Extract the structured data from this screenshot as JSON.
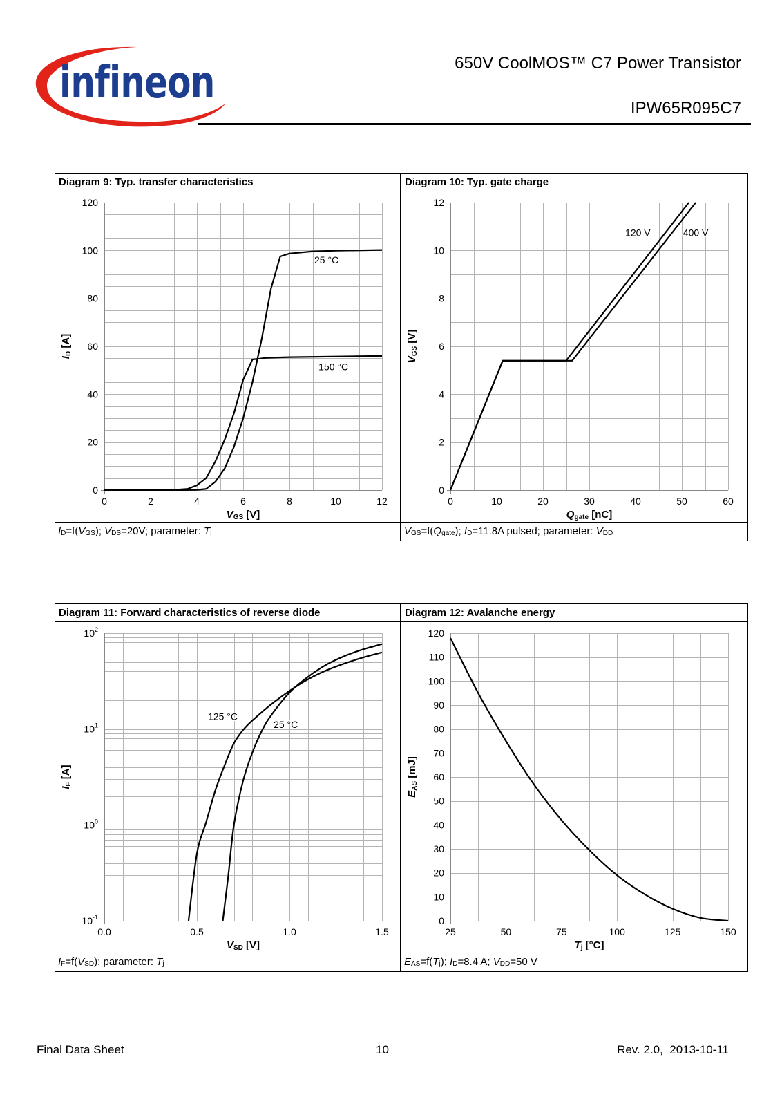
{
  "header": {
    "logo_text": "infineon",
    "title": "650V CoolMOS™ C7 Power Transistor",
    "part_number": "IPW65R095C7"
  },
  "footer": {
    "left": "Final Data Sheet",
    "page": "10",
    "revision": "Rev. 2.0,  2013-10-11"
  },
  "chart_data": [
    {
      "type": "line",
      "title": "Diagram 9: Typ. transfer characteristics",
      "xlabel": [
        [
          "V",
          "i"
        ],
        [
          "GS",
          "s"
        ],
        [
          " [V]",
          ""
        ]
      ],
      "ylabel": [
        [
          "I",
          "i"
        ],
        [
          "D",
          "s"
        ],
        [
          " [A]",
          ""
        ]
      ],
      "xlim": [
        0,
        12
      ],
      "ylim": [
        0,
        120
      ],
      "yscale": "linear",
      "grid": true,
      "xticks": [
        {
          "v": 0,
          "label": "0"
        },
        {
          "v": 2,
          "label": "2"
        },
        {
          "v": 4,
          "label": "4"
        },
        {
          "v": 6,
          "label": "6"
        },
        {
          "v": 8,
          "label": "8"
        },
        {
          "v": 10,
          "label": "10"
        },
        {
          "v": 12,
          "label": "12"
        }
      ],
      "yticks": [
        {
          "v": 0,
          "label": "0"
        },
        {
          "v": 20,
          "label": "20"
        },
        {
          "v": 40,
          "label": "40"
        },
        {
          "v": 60,
          "label": "60"
        },
        {
          "v": 80,
          "label": "80"
        },
        {
          "v": 100,
          "label": "100"
        },
        {
          "v": 120,
          "label": "120"
        }
      ],
      "series": [
        {
          "name": "25 °C",
          "x": [
            0,
            3,
            4,
            4.4,
            4.8,
            5.2,
            5.6,
            6,
            6.4,
            6.8,
            7.2,
            7.6,
            8,
            9,
            10,
            12
          ],
          "y": [
            0,
            0,
            0.1,
            0.5,
            3.5,
            9,
            18,
            30,
            45,
            63,
            84,
            97.5,
            98.7,
            99.6,
            99.9,
            100.2
          ]
        },
        {
          "name": "150 °C",
          "x": [
            0,
            3,
            3.6,
            4,
            4.4,
            4.8,
            5.2,
            5.6,
            6,
            6.4,
            7,
            8,
            12
          ],
          "y": [
            0,
            0.1,
            0.5,
            2,
            5,
            12,
            21,
            32,
            46,
            54.5,
            55.2,
            55.5,
            56
          ]
        }
      ],
      "annotations": [
        {
          "text": "25 °C",
          "x": 9.6,
          "y": 96
        },
        {
          "text": "150 °C",
          "x": 9.9,
          "y": 51.5
        }
      ],
      "caption": [
        [
          "I",
          "i"
        ],
        [
          "D",
          "s"
        ],
        [
          "=f(",
          ""
        ],
        [
          "V",
          "i"
        ],
        [
          "GS",
          "s"
        ],
        [
          "); ",
          ""
        ],
        [
          "V",
          "i"
        ],
        [
          "DS",
          "s"
        ],
        [
          "=20V; parameter: ",
          ""
        ],
        [
          "T",
          "i"
        ],
        [
          "j",
          "s"
        ]
      ]
    },
    {
      "type": "line",
      "title": "Diagram 10: Typ. gate charge",
      "xlabel": [
        [
          "Q",
          "i"
        ],
        [
          "gate",
          "s"
        ],
        [
          " [nC]",
          ""
        ]
      ],
      "ylabel": [
        [
          "V",
          "i"
        ],
        [
          "GS",
          "s"
        ],
        [
          " [V]",
          ""
        ]
      ],
      "xlim": [
        0,
        60
      ],
      "ylim": [
        0,
        12
      ],
      "yscale": "linear",
      "grid": true,
      "xticks": [
        {
          "v": 0,
          "label": "0"
        },
        {
          "v": 10,
          "label": "10"
        },
        {
          "v": 20,
          "label": "20"
        },
        {
          "v": 30,
          "label": "30"
        },
        {
          "v": 40,
          "label": "40"
        },
        {
          "v": 50,
          "label": "50"
        },
        {
          "v": 60,
          "label": "60"
        }
      ],
      "yticks": [
        {
          "v": 0,
          "label": "0"
        },
        {
          "v": 2,
          "label": "2"
        },
        {
          "v": 4,
          "label": "4"
        },
        {
          "v": 6,
          "label": "6"
        },
        {
          "v": 8,
          "label": "8"
        },
        {
          "v": 10,
          "label": "10"
        },
        {
          "v": 12,
          "label": "12"
        }
      ],
      "series": [
        {
          "name": "120 V",
          "x": [
            0,
            11.3,
            25,
            51.5
          ],
          "y": [
            0,
            5.4,
            5.4,
            12
          ]
        },
        {
          "name": "400 V",
          "x": [
            0,
            11.3,
            26.3,
            53
          ],
          "y": [
            0,
            5.4,
            5.4,
            12
          ]
        }
      ],
      "annotations": [
        {
          "text": "120 V",
          "x": 40.5,
          "y": 10.75
        },
        {
          "text": "400 V",
          "x": 53,
          "y": 10.75
        }
      ],
      "caption": [
        [
          "V",
          "i"
        ],
        [
          "GS",
          "s"
        ],
        [
          "=f(",
          ""
        ],
        [
          "Q",
          "i"
        ],
        [
          "gate",
          "s"
        ],
        [
          "); ",
          ""
        ],
        [
          "I",
          "i"
        ],
        [
          "D",
          "s"
        ],
        [
          "=11.8A pulsed; parameter: ",
          ""
        ],
        [
          "V",
          "i"
        ],
        [
          "DD",
          "s"
        ]
      ]
    },
    {
      "type": "line",
      "title": "Diagram 11: Forward characteristics of reverse diode",
      "xlabel": [
        [
          "V",
          "i"
        ],
        [
          "SD",
          "s"
        ],
        [
          " [V]",
          ""
        ]
      ],
      "ylabel": [
        [
          "I",
          "i"
        ],
        [
          "F",
          "s"
        ],
        [
          " [A]",
          ""
        ]
      ],
      "xlim": [
        0,
        1.5
      ],
      "ylim": [
        0.1,
        100
      ],
      "yscale": "log",
      "grid": true,
      "xticks": [
        {
          "v": 0,
          "label": "0.0"
        },
        {
          "v": 0.5,
          "label": "0.5"
        },
        {
          "v": 1.0,
          "label": "1.0"
        },
        {
          "v": 1.5,
          "label": "1.5"
        }
      ],
      "yticks": [
        {
          "v": 0.1,
          "label": "10^-1"
        },
        {
          "v": 1,
          "label": "10^0"
        },
        {
          "v": 10,
          "label": "10^1"
        },
        {
          "v": 100,
          "label": "10^2"
        }
      ],
      "series": [
        {
          "name": "125 °C",
          "x": [
            0.455,
            0.5,
            0.55,
            0.6,
            0.65,
            0.7,
            0.75,
            0.8,
            0.9,
            1.0,
            1.1,
            1.2,
            1.3,
            1.4,
            1.5
          ],
          "y": [
            0.1,
            0.5,
            1.07,
            2.3,
            4.2,
            7.1,
            9.8,
            12.3,
            18,
            25,
            33,
            41,
            48.5,
            56,
            63
          ]
        },
        {
          "name": "25 °C",
          "x": [
            0.64,
            0.67,
            0.7,
            0.75,
            0.8,
            0.85,
            0.9,
            1.0,
            1.1,
            1.2,
            1.3,
            1.4,
            1.5
          ],
          "y": [
            0.1,
            0.3,
            1.0,
            2.9,
            5.7,
            9.5,
            13.8,
            24,
            35,
            47,
            58,
            68,
            77
          ]
        }
      ],
      "annotations": [
        {
          "text": "125 °C",
          "x": 0.64,
          "y": 13.5
        },
        {
          "text": "25 °C",
          "x": 0.98,
          "y": 11.2
        }
      ],
      "caption": [
        [
          "I",
          "i"
        ],
        [
          "F",
          "s"
        ],
        [
          "=f(",
          ""
        ],
        [
          "V",
          "i"
        ],
        [
          "SD",
          "s"
        ],
        [
          "); parameter: ",
          ""
        ],
        [
          "T",
          "i"
        ],
        [
          "j",
          "s"
        ]
      ]
    },
    {
      "type": "line",
      "title": "Diagram 12: Avalanche energy",
      "xlabel": [
        [
          "T",
          "i"
        ],
        [
          "j",
          "s"
        ],
        [
          " [°C]",
          ""
        ]
      ],
      "ylabel": [
        [
          "E",
          "i"
        ],
        [
          "AS",
          "s"
        ],
        [
          " [mJ]",
          ""
        ]
      ],
      "xlim": [
        25,
        150
      ],
      "ylim": [
        0,
        120
      ],
      "yscale": "linear",
      "grid": true,
      "xticks": [
        {
          "v": 25,
          "label": "25"
        },
        {
          "v": 50,
          "label": "50"
        },
        {
          "v": 75,
          "label": "75"
        },
        {
          "v": 100,
          "label": "100"
        },
        {
          "v": 125,
          "label": "125"
        },
        {
          "v": 150,
          "label": "150"
        }
      ],
      "yticks": [
        {
          "v": 0,
          "label": "0"
        },
        {
          "v": 10,
          "label": "10"
        },
        {
          "v": 20,
          "label": "20"
        },
        {
          "v": 30,
          "label": "30"
        },
        {
          "v": 40,
          "label": "40"
        },
        {
          "v": 50,
          "label": "50"
        },
        {
          "v": 60,
          "label": "60"
        },
        {
          "v": 70,
          "label": "70"
        },
        {
          "v": 80,
          "label": "80"
        },
        {
          "v": 90,
          "label": "90"
        },
        {
          "v": 100,
          "label": "100"
        },
        {
          "v": 110,
          "label": "110"
        },
        {
          "v": 120,
          "label": "120"
        }
      ],
      "series": [
        {
          "name": "EAS",
          "x": [
            25,
            37.5,
            50,
            62.5,
            75,
            87.5,
            100,
            112.5,
            125,
            137.5,
            150
          ],
          "y": [
            118,
            95,
            75,
            57,
            42,
            29.5,
            19,
            11,
            5,
            1.2,
            0
          ]
        }
      ],
      "annotations": [],
      "caption": [
        [
          "E",
          "i"
        ],
        [
          "AS",
          "s"
        ],
        [
          "=f(",
          ""
        ],
        [
          "T",
          "i"
        ],
        [
          "j",
          "s"
        ],
        [
          "); ",
          ""
        ],
        [
          "I",
          "i"
        ],
        [
          "D",
          "s"
        ],
        [
          "=8.4 A; ",
          ""
        ],
        [
          "V",
          "i"
        ],
        [
          "DD",
          "s"
        ],
        [
          "=50 V",
          ""
        ]
      ]
    }
  ]
}
